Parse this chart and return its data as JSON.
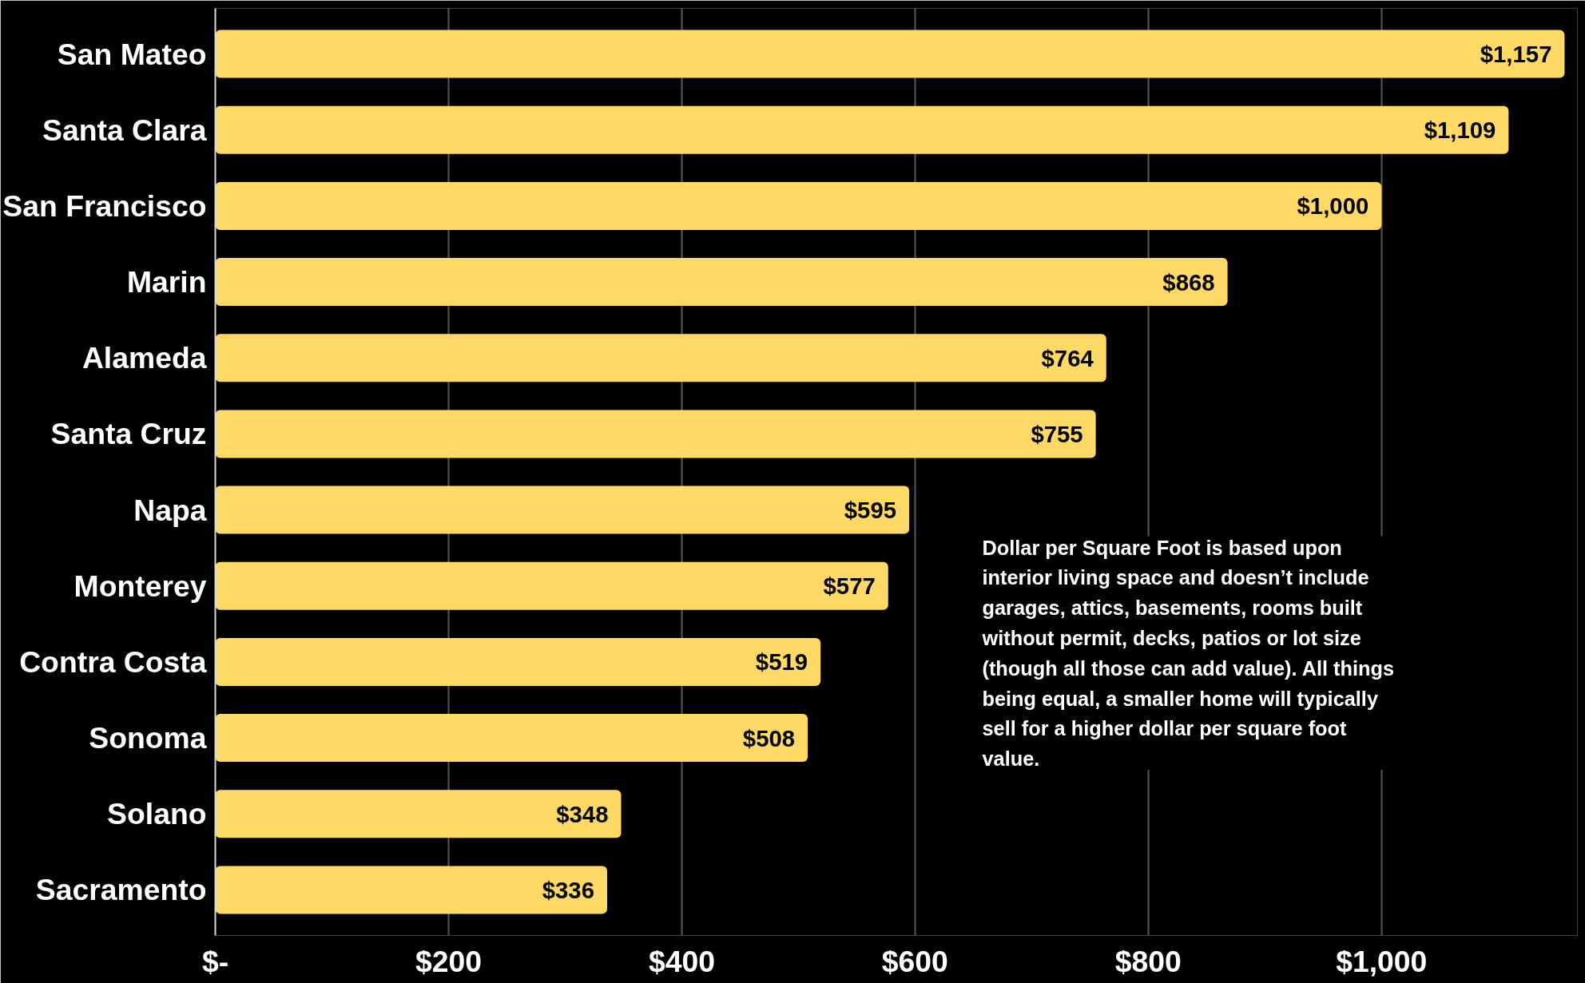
{
  "chart_data": {
    "type": "bar",
    "orientation": "horizontal",
    "categories": [
      "San Mateo",
      "Santa Clara",
      "San Francisco",
      "Marin",
      "Alameda",
      "Santa Cruz",
      "Napa",
      "Monterey",
      "Contra Costa",
      "Sonoma",
      "Solano",
      "Sacramento"
    ],
    "values": [
      1157,
      1109,
      1000,
      868,
      764,
      755,
      595,
      577,
      519,
      508,
      348,
      336
    ],
    "value_labels": [
      "$1,157",
      "$1,109",
      "$1,000",
      "$868",
      "$764",
      "$755",
      "$595",
      "$577",
      "$519",
      "$508",
      "$348",
      "$336"
    ],
    "color": "#ffd966",
    "xlim": [
      0,
      1168
    ],
    "xticks": [
      {
        "value": 0,
        "label": "$-"
      },
      {
        "value": 200,
        "label": "$200"
      },
      {
        "value": 400,
        "label": "$400"
      },
      {
        "value": 600,
        "label": "$600"
      },
      {
        "value": 800,
        "label": "$800"
      },
      {
        "value": 1000,
        "label": "$1,000"
      }
    ],
    "grid": "x",
    "legend": false,
    "annotations": [
      "Dollar per Square Foot is based upon interior living space and doesn’t include garages, attics, basements, rooms built without permit, decks, patios or lot size (though all those can add value). All things being equal, a smaller home will typically sell for a higher dollar per square foot value."
    ]
  }
}
